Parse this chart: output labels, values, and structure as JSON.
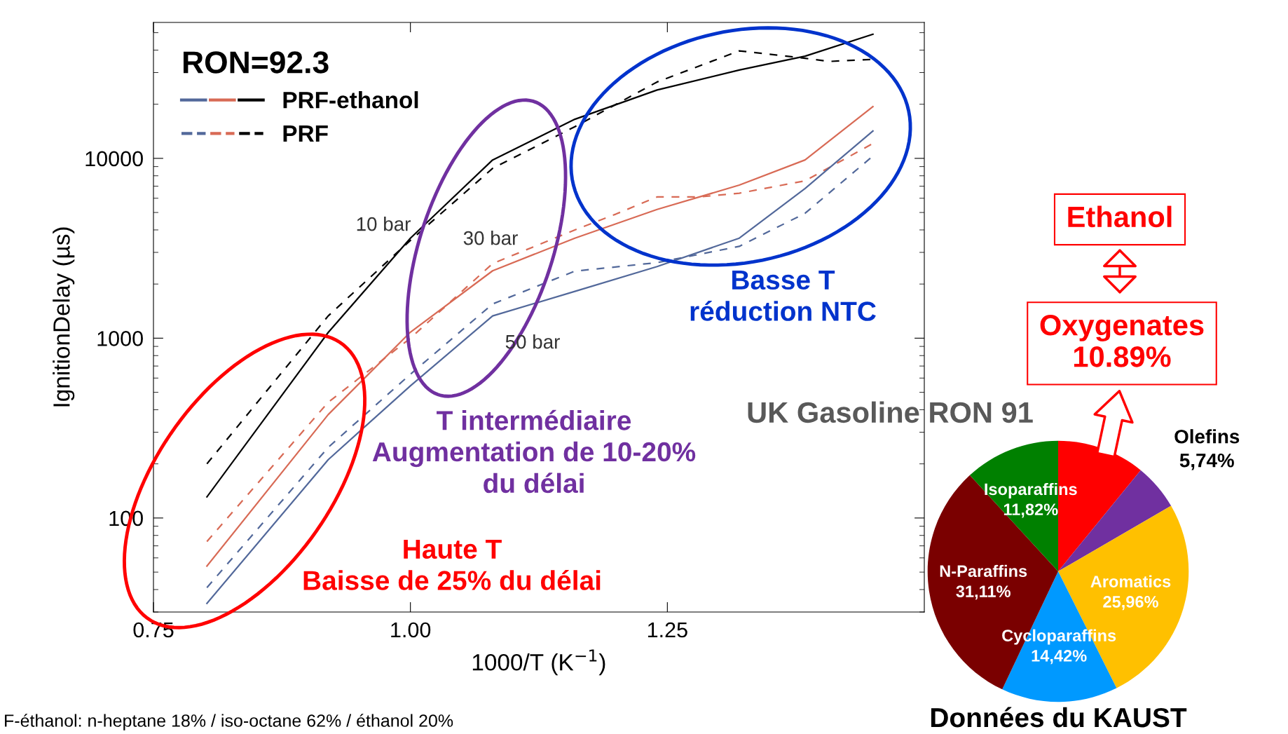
{
  "chart_data": [
    {
      "type": "line",
      "xlabel": "1000/T (K$^{−1}$)",
      "ylabel": "IgnitionDelay (µs)",
      "legend_title": "RON=92.3",
      "legend": "top left",
      "log": "y",
      "grid": false,
      "xlim": [
        0.75,
        1.5
      ],
      "xticks": [
        0.75,
        {
          "value": 1.0,
          "label": "1.00"
        },
        1.25
      ],
      "ylim": [
        30,
        57000
      ],
      "yticks": [
        100,
        1000,
        10000
      ],
      "series": [
        {
          "name": "PRF-ethanol",
          "color": "#000000",
          "line_style": "solid",
          "x": [
            0.802,
            0.92,
            1.0,
            1.08,
            1.16,
            1.24,
            1.32,
            1.384,
            1.45
          ],
          "values": [
            131,
            1076,
            3600,
            9800,
            16500,
            24000,
            31000,
            37000,
            49000
          ]
        },
        {
          "name": "PRF",
          "color": "#000000",
          "line_style": "dashed",
          "x": [
            0.802,
            0.92,
            1.0,
            1.08,
            1.16,
            1.24,
            1.32,
            1.384,
            1.408,
            1.45
          ],
          "values": [
            200,
            1330,
            3500,
            8800,
            15000,
            26600,
            39600,
            36000,
            34600,
            35500
          ]
        },
        {
          "color": "#d86a55",
          "line_style": "solid",
          "x": [
            0.802,
            0.92,
            1.0,
            1.08,
            1.16,
            1.24,
            1.32,
            1.384,
            1.45
          ],
          "values": [
            54,
            376,
            1080,
            2370,
            3600,
            5200,
            7100,
            9800,
            19400
          ]
        },
        {
          "color": "#d86a55",
          "line_style": "dashed",
          "x": [
            0.802,
            0.92,
            1.0,
            1.08,
            1.16,
            1.2,
            1.24,
            1.28,
            1.32,
            1.384,
            1.45
          ],
          "values": [
            74,
            440,
            1000,
            2600,
            4000,
            4900,
            6100,
            6100,
            6400,
            7500,
            12100
          ]
        },
        {
          "color": "#52689a",
          "line_style": "solid",
          "x": [
            0.802,
            0.92,
            1.0,
            1.08,
            1.16,
            1.24,
            1.32,
            1.384,
            1.45
          ],
          "values": [
            33.5,
            211,
            543,
            1330,
            1820,
            2500,
            3600,
            6800,
            14200
          ]
        },
        {
          "color": "#52689a",
          "line_style": "dashed",
          "x": [
            0.802,
            0.92,
            1.0,
            1.08,
            1.16,
            1.24,
            1.32,
            1.384,
            1.45
          ],
          "values": [
            41,
            247,
            630,
            1550,
            2360,
            2630,
            3240,
            4950,
            10300
          ]
        }
      ],
      "annotations": [
        "10 bar",
        "30 bar",
        "50 bar",
        "Basse T\nréduction NTC",
        "T intermédiaire\nAugmentation de 10-20%\ndu délai",
        "Haute T\nBaisse de 25% du délai",
        "F-éthanol: n-heptane 18% / iso-octane 62% / éthanol 20%"
      ]
    },
    {
      "type": "pie",
      "title": "UK Gasoline RON 91",
      "categories": [
        "Oxygenates",
        "Olefins",
        "Aromatics",
        "Cycloparaffins",
        "N-Paraffins",
        "Isoparaffins"
      ],
      "values": [
        10.89,
        5.74,
        25.96,
        14.42,
        31.11,
        11.82
      ],
      "value_labels": [
        "10.89%",
        "5,74%",
        "25,96%",
        "14,42%",
        "31,11%",
        "11,82%"
      ],
      "colors": [
        "#ff0000",
        "#7030a0",
        "#ffc000",
        "#0099ff",
        "#7a0000",
        "#008000"
      ],
      "annotations": [
        "Ethanol",
        "Données du KAUST"
      ]
    }
  ]
}
